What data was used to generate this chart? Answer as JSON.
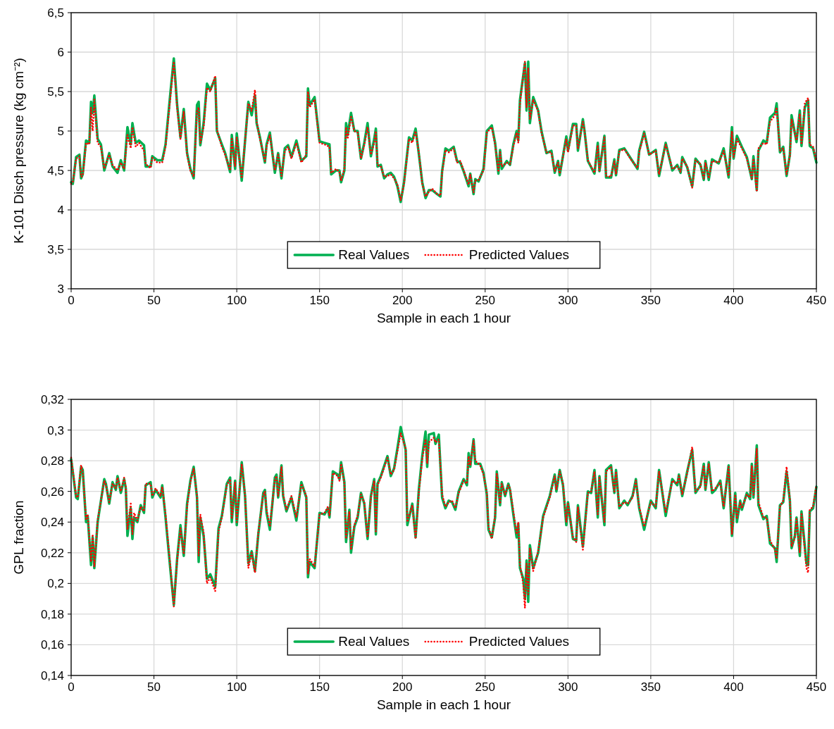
{
  "chart_data": [
    {
      "type": "line",
      "xlabel": "Sample in each 1 hour",
      "ylabel": "K-101 Disch pressure (kg cm⁻²)",
      "xlim": [
        0,
        450
      ],
      "xticks": [
        0,
        50,
        100,
        150,
        200,
        250,
        300,
        350,
        400,
        450
      ],
      "ylim": [
        3,
        6.5
      ],
      "yticks": [
        3,
        {
          "value": 3.5,
          "label": "3,5"
        },
        4,
        {
          "value": 4.5,
          "label": "4,5"
        },
        5,
        {
          "value": 5.5,
          "label": "5,5"
        },
        6,
        {
          "value": 6.5,
          "label": "6,5"
        }
      ],
      "grid": true,
      "legend": "bottom",
      "x": [
        0,
        1,
        3,
        5,
        6,
        7,
        9,
        11,
        12,
        13,
        14,
        16,
        18,
        20,
        23,
        25,
        28,
        30,
        32,
        34,
        36,
        37,
        39,
        41,
        44,
        45,
        48,
        49,
        52,
        55,
        57,
        60,
        62,
        64,
        66,
        68,
        70,
        72,
        74,
        76,
        77,
        78,
        80,
        82,
        84,
        87,
        88,
        91,
        93,
        96,
        97,
        99,
        100,
        103,
        107,
        109,
        111,
        112,
        114,
        117,
        118,
        120,
        123,
        125,
        127,
        129,
        131,
        133,
        136,
        139,
        142,
        143,
        144,
        147,
        150,
        153,
        156,
        157,
        160,
        162,
        163,
        165,
        166,
        167,
        169,
        171,
        173,
        175,
        177,
        179,
        181,
        183,
        184,
        185,
        187,
        189,
        191,
        193,
        195,
        197,
        199,
        201,
        204,
        206,
        208,
        210,
        212,
        214,
        216,
        218,
        221,
        223,
        224,
        226,
        228,
        231,
        233,
        235,
        237,
        240,
        241,
        243,
        244,
        246,
        249,
        251,
        254,
        256,
        258,
        259,
        260,
        263,
        265,
        267,
        269,
        270,
        271,
        274,
        275,
        276,
        277,
        279,
        282,
        284,
        287,
        290,
        292,
        294,
        295,
        299,
        300,
        303,
        305,
        306,
        309,
        310,
        312,
        316,
        318,
        319,
        322,
        323,
        326,
        328,
        329,
        331,
        334,
        338,
        342,
        343,
        346,
        349,
        353,
        355,
        359,
        363,
        366,
        368,
        369,
        372,
        375,
        377,
        380,
        382,
        383,
        385,
        387,
        391,
        394,
        397,
        399,
        400,
        402,
        405,
        408,
        411,
        412,
        414,
        415,
        418,
        420,
        422,
        425,
        426,
        428,
        430,
        432,
        434,
        435,
        438,
        440,
        441,
        443,
        445,
        446,
        448,
        450
      ],
      "series": [
        {
          "name": "Real Values",
          "color": "#00b050",
          "line_style": "solid",
          "values": [
            4.35,
            4.33,
            4.67,
            4.7,
            4.4,
            4.45,
            4.88,
            4.85,
            5.37,
            5.23,
            5.45,
            4.9,
            4.83,
            4.5,
            4.72,
            4.55,
            4.47,
            4.63,
            4.5,
            5.05,
            4.83,
            5.1,
            4.85,
            4.88,
            4.82,
            4.55,
            4.55,
            4.68,
            4.63,
            4.63,
            4.83,
            5.5,
            5.92,
            5.33,
            4.92,
            5.28,
            4.72,
            4.52,
            4.4,
            5.33,
            5.37,
            4.82,
            5.1,
            5.6,
            5.52,
            5.67,
            5.0,
            4.83,
            4.72,
            4.48,
            4.95,
            4.52,
            4.97,
            4.37,
            5.37,
            5.2,
            5.45,
            5.1,
            4.92,
            4.6,
            4.83,
            4.98,
            4.47,
            4.72,
            4.4,
            4.78,
            4.82,
            4.67,
            4.88,
            4.62,
            4.68,
            5.54,
            5.33,
            5.43,
            4.87,
            4.85,
            4.83,
            4.45,
            4.5,
            4.5,
            4.35,
            4.5,
            5.1,
            4.95,
            5.23,
            5.0,
            5.0,
            4.65,
            4.85,
            5.1,
            4.68,
            4.9,
            5.03,
            4.55,
            4.57,
            4.4,
            4.45,
            4.47,
            4.42,
            4.3,
            4.1,
            4.35,
            4.92,
            4.88,
            5.03,
            4.7,
            4.35,
            4.15,
            4.25,
            4.25,
            4.2,
            4.17,
            4.49,
            4.78,
            4.75,
            4.8,
            4.62,
            4.6,
            4.49,
            4.3,
            4.46,
            4.2,
            4.39,
            4.36,
            4.52,
            5.0,
            5.07,
            4.85,
            4.46,
            4.76,
            4.52,
            4.62,
            4.57,
            4.83,
            5.0,
            4.88,
            5.39,
            5.86,
            5.26,
            5.88,
            5.1,
            5.43,
            5.26,
            5.0,
            4.72,
            4.75,
            4.47,
            4.62,
            4.44,
            4.93,
            4.75,
            5.09,
            5.09,
            4.75,
            5.15,
            5.0,
            4.62,
            4.46,
            4.85,
            4.49,
            4.94,
            4.41,
            4.41,
            4.64,
            4.44,
            4.76,
            4.78,
            4.65,
            4.52,
            4.75,
            4.99,
            4.7,
            4.76,
            4.43,
            4.85,
            4.5,
            4.57,
            4.47,
            4.67,
            4.54,
            4.3,
            4.65,
            4.57,
            4.38,
            4.62,
            4.38,
            4.64,
            4.59,
            4.78,
            4.41,
            5.05,
            4.65,
            4.94,
            4.8,
            4.67,
            4.39,
            4.68,
            4.25,
            4.75,
            4.88,
            4.85,
            5.17,
            5.23,
            5.35,
            4.73,
            4.8,
            4.43,
            4.7,
            5.2,
            4.86,
            5.26,
            4.81,
            5.3,
            5.39,
            4.81,
            4.78,
            4.6
          ]
        },
        {
          "name": "Predicted Values",
          "color": "#ff0000",
          "line_style": "dotted",
          "values": [
            4.33,
            4.35,
            4.65,
            4.68,
            4.42,
            4.43,
            4.85,
            4.83,
            5.3,
            5.0,
            5.4,
            4.85,
            4.8,
            4.52,
            4.7,
            4.57,
            4.5,
            4.6,
            4.52,
            4.95,
            4.78,
            5.05,
            4.8,
            4.85,
            4.75,
            4.58,
            4.53,
            4.66,
            4.6,
            4.6,
            4.8,
            5.45,
            5.88,
            5.3,
            4.9,
            5.25,
            4.7,
            4.5,
            4.42,
            5.25,
            5.3,
            4.85,
            5.05,
            5.55,
            5.5,
            5.7,
            5.02,
            4.8,
            4.7,
            4.5,
            4.9,
            4.55,
            4.92,
            4.4,
            5.35,
            5.25,
            5.52,
            5.12,
            4.9,
            4.62,
            4.8,
            4.95,
            4.5,
            4.7,
            4.43,
            4.75,
            4.8,
            4.65,
            4.85,
            4.6,
            4.7,
            5.5,
            5.3,
            5.4,
            4.85,
            4.83,
            4.8,
            4.47,
            4.52,
            4.48,
            4.37,
            4.52,
            5.05,
            4.9,
            5.18,
            5.0,
            4.98,
            4.65,
            4.82,
            5.05,
            4.7,
            4.85,
            5.0,
            4.57,
            4.55,
            4.42,
            4.43,
            4.45,
            4.4,
            4.32,
            4.12,
            4.33,
            4.9,
            4.85,
            5.0,
            4.72,
            4.33,
            4.17,
            4.23,
            4.27,
            4.2,
            4.18,
            4.47,
            4.76,
            4.73,
            4.78,
            4.6,
            4.62,
            4.5,
            4.32,
            4.45,
            4.22,
            4.37,
            4.38,
            4.5,
            4.98,
            5.05,
            4.83,
            4.48,
            4.73,
            4.55,
            4.6,
            4.58,
            4.8,
            4.98,
            4.85,
            5.35,
            5.88,
            5.3,
            5.8,
            5.15,
            5.4,
            5.25,
            4.98,
            4.73,
            4.73,
            4.49,
            4.6,
            4.46,
            4.9,
            4.73,
            5.07,
            5.07,
            4.77,
            5.12,
            5.0,
            4.63,
            4.47,
            4.82,
            4.5,
            4.92,
            4.43,
            4.42,
            4.62,
            4.45,
            4.74,
            4.77,
            4.64,
            4.53,
            4.73,
            4.97,
            4.7,
            4.75,
            4.45,
            4.83,
            4.52,
            4.55,
            4.48,
            4.65,
            4.55,
            4.28,
            4.63,
            4.58,
            4.4,
            4.6,
            4.4,
            4.62,
            4.6,
            4.75,
            4.43,
            5.0,
            4.67,
            4.9,
            4.78,
            4.65,
            4.4,
            4.65,
            4.23,
            4.78,
            4.85,
            4.83,
            5.12,
            5.2,
            5.3,
            4.75,
            4.78,
            4.45,
            4.68,
            5.15,
            4.88,
            5.22,
            4.83,
            5.35,
            5.42,
            4.83,
            4.8,
            4.62
          ]
        }
      ]
    },
    {
      "type": "line",
      "xlabel": "Sample in each 1 hour",
      "ylabel": "GPL fraction",
      "xlim": [
        0,
        450
      ],
      "xticks": [
        0,
        50,
        100,
        150,
        200,
        250,
        300,
        350,
        400,
        450
      ],
      "ylim": [
        0.14,
        0.32
      ],
      "yticks": [
        {
          "value": 0.14,
          "label": "0,14"
        },
        {
          "value": 0.16,
          "label": "0,16"
        },
        {
          "value": 0.18,
          "label": "0,18"
        },
        {
          "value": 0.2,
          "label": "0,2"
        },
        {
          "value": 0.22,
          "label": "0,22"
        },
        {
          "value": 0.24,
          "label": "0,24"
        },
        {
          "value": 0.26,
          "label": "0,26"
        },
        {
          "value": 0.28,
          "label": "0,28"
        },
        {
          "value": 0.3,
          "label": "0,3"
        },
        {
          "value": 0.32,
          "label": "0,32"
        }
      ],
      "grid": true,
      "legend": "bottom",
      "x": [
        0,
        3,
        4,
        6,
        7,
        9,
        10,
        12,
        13,
        14,
        16,
        20,
        21,
        23,
        25,
        27,
        28,
        30,
        32,
        33,
        34,
        36,
        37,
        38,
        40,
        42,
        44,
        45,
        48,
        49,
        51,
        54,
        55,
        57,
        60,
        62,
        64,
        66,
        68,
        70,
        72,
        74,
        76,
        77,
        78,
        80,
        82,
        84,
        87,
        89,
        91,
        94,
        96,
        97,
        99,
        100,
        103,
        105,
        107,
        109,
        111,
        113,
        116,
        117,
        118,
        120,
        123,
        124,
        125,
        127,
        128,
        130,
        133,
        136,
        139,
        142,
        143,
        144,
        147,
        150,
        153,
        155,
        156,
        158,
        161,
        162,
        163,
        165,
        166,
        168,
        169,
        171,
        173,
        175,
        177,
        179,
        181,
        183,
        184,
        185,
        187,
        191,
        193,
        195,
        197,
        199,
        202,
        203,
        206,
        208,
        210,
        212,
        214,
        215,
        216,
        219,
        220,
        222,
        224,
        226,
        228,
        230,
        232,
        234,
        237,
        239,
        240,
        241,
        243,
        244,
        247,
        249,
        251,
        252,
        254,
        256,
        257,
        259,
        260,
        262,
        264,
        265,
        267,
        269,
        270,
        271,
        273,
        274,
        275,
        276,
        277,
        279,
        282,
        285,
        289,
        292,
        293,
        295,
        297,
        299,
        300,
        303,
        305,
        306,
        309,
        312,
        314,
        316,
        318,
        319,
        322,
        323,
        326,
        328,
        329,
        331,
        334,
        336,
        339,
        341,
        343,
        346,
        350,
        353,
        355,
        359,
        363,
        366,
        367,
        369,
        372,
        375,
        377,
        380,
        382,
        383,
        385,
        387,
        389,
        392,
        394,
        397,
        399,
        401,
        402,
        404,
        405,
        408,
        410,
        411,
        412,
        414,
        415,
        418,
        420,
        422,
        425,
        426,
        428,
        430,
        432,
        434,
        435,
        437,
        438,
        440,
        441,
        444,
        445,
        446,
        448,
        450
      ],
      "series": [
        {
          "name": "Real Values",
          "color": "#00b050",
          "line_style": "solid",
          "values": [
            0.281,
            0.256,
            0.255,
            0.276,
            0.274,
            0.24,
            0.244,
            0.212,
            0.23,
            0.21,
            0.24,
            0.268,
            0.265,
            0.252,
            0.266,
            0.261,
            0.27,
            0.259,
            0.268,
            0.262,
            0.231,
            0.249,
            0.229,
            0.243,
            0.24,
            0.251,
            0.246,
            0.264,
            0.266,
            0.256,
            0.261,
            0.256,
            0.264,
            0.243,
            0.208,
            0.186,
            0.216,
            0.238,
            0.218,
            0.252,
            0.267,
            0.276,
            0.256,
            0.214,
            0.243,
            0.231,
            0.203,
            0.206,
            0.198,
            0.236,
            0.244,
            0.265,
            0.269,
            0.24,
            0.267,
            0.238,
            0.279,
            0.257,
            0.213,
            0.221,
            0.208,
            0.232,
            0.259,
            0.261,
            0.246,
            0.235,
            0.269,
            0.271,
            0.256,
            0.277,
            0.257,
            0.247,
            0.256,
            0.241,
            0.266,
            0.256,
            0.204,
            0.214,
            0.21,
            0.246,
            0.245,
            0.249,
            0.243,
            0.273,
            0.271,
            0.268,
            0.279,
            0.266,
            0.227,
            0.248,
            0.22,
            0.237,
            0.243,
            0.259,
            0.252,
            0.229,
            0.257,
            0.268,
            0.232,
            0.265,
            0.27,
            0.283,
            0.27,
            0.275,
            0.288,
            0.302,
            0.287,
            0.238,
            0.252,
            0.23,
            0.262,
            0.283,
            0.299,
            0.276,
            0.297,
            0.298,
            0.291,
            0.297,
            0.256,
            0.249,
            0.254,
            0.253,
            0.248,
            0.26,
            0.268,
            0.264,
            0.285,
            0.276,
            0.294,
            0.278,
            0.278,
            0.272,
            0.258,
            0.235,
            0.23,
            0.243,
            0.273,
            0.251,
            0.266,
            0.257,
            0.265,
            0.261,
            0.245,
            0.23,
            0.239,
            0.21,
            0.203,
            0.19,
            0.215,
            0.188,
            0.225,
            0.21,
            0.22,
            0.244,
            0.257,
            0.271,
            0.26,
            0.274,
            0.264,
            0.238,
            0.253,
            0.229,
            0.228,
            0.251,
            0.224,
            0.26,
            0.259,
            0.274,
            0.243,
            0.27,
            0.238,
            0.274,
            0.277,
            0.259,
            0.274,
            0.249,
            0.254,
            0.251,
            0.257,
            0.268,
            0.249,
            0.235,
            0.254,
            0.249,
            0.274,
            0.244,
            0.268,
            0.264,
            0.271,
            0.257,
            0.273,
            0.287,
            0.259,
            0.264,
            0.278,
            0.261,
            0.279,
            0.259,
            0.261,
            0.267,
            0.249,
            0.277,
            0.231,
            0.259,
            0.24,
            0.254,
            0.248,
            0.259,
            0.255,
            0.278,
            0.256,
            0.29,
            0.251,
            0.242,
            0.244,
            0.226,
            0.223,
            0.214,
            0.251,
            0.253,
            0.273,
            0.254,
            0.223,
            0.231,
            0.243,
            0.218,
            0.247,
            0.213,
            0.212,
            0.247,
            0.249,
            0.263
          ]
        },
        {
          "name": "Predicted Values",
          "color": "#ff0000",
          "line_style": "dotted",
          "values": [
            0.282,
            0.257,
            0.256,
            0.277,
            0.273,
            0.242,
            0.245,
            0.214,
            0.232,
            0.211,
            0.241,
            0.267,
            0.264,
            0.253,
            0.265,
            0.262,
            0.269,
            0.26,
            0.269,
            0.263,
            0.235,
            0.252,
            0.232,
            0.246,
            0.241,
            0.25,
            0.247,
            0.265,
            0.265,
            0.257,
            0.262,
            0.257,
            0.263,
            0.245,
            0.21,
            0.185,
            0.215,
            0.236,
            0.219,
            0.25,
            0.266,
            0.275,
            0.257,
            0.218,
            0.245,
            0.233,
            0.2,
            0.204,
            0.195,
            0.234,
            0.243,
            0.264,
            0.268,
            0.242,
            0.266,
            0.24,
            0.278,
            0.258,
            0.21,
            0.22,
            0.207,
            0.233,
            0.258,
            0.26,
            0.248,
            0.237,
            0.268,
            0.27,
            0.257,
            0.276,
            0.258,
            0.248,
            0.257,
            0.243,
            0.265,
            0.257,
            0.206,
            0.216,
            0.211,
            0.245,
            0.246,
            0.25,
            0.244,
            0.272,
            0.27,
            0.267,
            0.278,
            0.265,
            0.229,
            0.247,
            0.222,
            0.238,
            0.244,
            0.258,
            0.253,
            0.23,
            0.256,
            0.267,
            0.234,
            0.264,
            0.269,
            0.282,
            0.271,
            0.274,
            0.286,
            0.298,
            0.288,
            0.24,
            0.251,
            0.229,
            0.26,
            0.281,
            0.294,
            0.278,
            0.292,
            0.295,
            0.292,
            0.294,
            0.258,
            0.25,
            0.253,
            0.254,
            0.249,
            0.259,
            0.267,
            0.265,
            0.283,
            0.277,
            0.293,
            0.28,
            0.277,
            0.271,
            0.259,
            0.237,
            0.229,
            0.244,
            0.272,
            0.252,
            0.265,
            0.258,
            0.264,
            0.262,
            0.247,
            0.232,
            0.24,
            0.212,
            0.2,
            0.184,
            0.213,
            0.193,
            0.223,
            0.208,
            0.221,
            0.243,
            0.256,
            0.27,
            0.261,
            0.273,
            0.265,
            0.24,
            0.252,
            0.23,
            0.227,
            0.25,
            0.222,
            0.259,
            0.26,
            0.273,
            0.245,
            0.269,
            0.24,
            0.273,
            0.276,
            0.26,
            0.273,
            0.25,
            0.253,
            0.252,
            0.256,
            0.267,
            0.25,
            0.237,
            0.253,
            0.25,
            0.273,
            0.246,
            0.267,
            0.265,
            0.27,
            0.258,
            0.272,
            0.289,
            0.26,
            0.263,
            0.277,
            0.262,
            0.278,
            0.26,
            0.262,
            0.266,
            0.25,
            0.276,
            0.232,
            0.258,
            0.242,
            0.253,
            0.249,
            0.258,
            0.256,
            0.277,
            0.257,
            0.288,
            0.253,
            0.243,
            0.243,
            0.228,
            0.222,
            0.216,
            0.25,
            0.254,
            0.276,
            0.255,
            0.224,
            0.23,
            0.242,
            0.22,
            0.246,
            0.21,
            0.207,
            0.248,
            0.25,
            0.264
          ]
        }
      ]
    }
  ]
}
